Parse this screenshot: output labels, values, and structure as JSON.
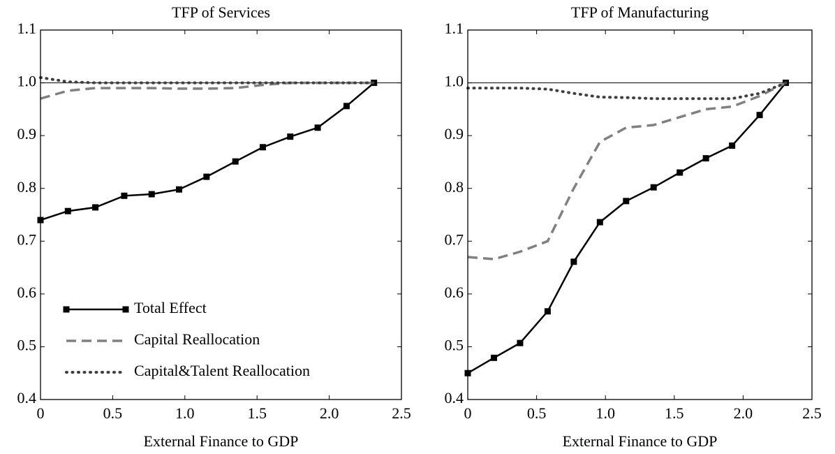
{
  "chart_data": [
    {
      "type": "line",
      "title": "TFP of Services",
      "xlabel": "External Finance to GDP",
      "x": [
        0,
        0.19,
        0.38,
        0.58,
        0.77,
        0.96,
        1.15,
        1.35,
        1.54,
        1.73,
        1.92,
        2.12,
        2.31
      ],
      "series": [
        {
          "name": "Total Effect",
          "color": "#000000",
          "linestyle": "solid",
          "marker": "square",
          "values": [
            0.74,
            0.757,
            0.764,
            0.786,
            0.789,
            0.798,
            0.822,
            0.851,
            0.878,
            0.898,
            0.915,
            0.956,
            1.0
          ]
        },
        {
          "name": "Capital Reallocation",
          "color": "#808080",
          "linestyle": "dashed",
          "values": [
            0.97,
            0.985,
            0.99,
            0.99,
            0.99,
            0.989,
            0.989,
            0.99,
            0.996,
            1.0,
            1.0,
            1.0,
            1.0
          ]
        },
        {
          "name": "Capital&Talent Reallocation",
          "color": "#404040",
          "linestyle": "dotted",
          "values": [
            1.01,
            1.002,
            1.0,
            1.0,
            1.0,
            1.0,
            1.0,
            1.0,
            1.0,
            1.0,
            1.0,
            1.0,
            1.0
          ]
        }
      ],
      "xlim": [
        0,
        2.5
      ],
      "ylim": [
        0.4,
        1.1
      ],
      "xticks": [
        0,
        0.5,
        {
          "value": 1,
          "label": "1.0"
        },
        1.5,
        {
          "value": 2,
          "label": "2.0"
        },
        2.5
      ],
      "yticks": [
        0.4,
        0.5,
        0.6,
        0.7,
        0.8,
        0.9,
        {
          "value": 1,
          "label": "1.0"
        },
        1.1
      ],
      "hline": 1,
      "legend": "lower left"
    },
    {
      "type": "line",
      "title": "TFP of Manufacturing",
      "xlabel": "External Finance to GDP",
      "x": [
        0,
        0.19,
        0.38,
        0.58,
        0.77,
        0.96,
        1.15,
        1.35,
        1.54,
        1.73,
        1.92,
        2.12,
        2.31
      ],
      "series": [
        {
          "color": "#000000",
          "linestyle": "solid",
          "marker": "square",
          "values": [
            0.45,
            0.479,
            0.507,
            0.567,
            0.661,
            0.736,
            0.776,
            0.802,
            0.83,
            0.857,
            0.881,
            0.939,
            1.0
          ]
        },
        {
          "color": "#808080",
          "linestyle": "dashed",
          "values": [
            0.67,
            0.666,
            0.68,
            0.7,
            0.8,
            0.888,
            0.915,
            0.92,
            0.935,
            0.95,
            0.955,
            0.975,
            1.0
          ]
        },
        {
          "color": "#404040",
          "linestyle": "dotted",
          "values": [
            0.99,
            0.99,
            0.99,
            0.988,
            0.98,
            0.973,
            0.972,
            0.97,
            0.97,
            0.97,
            0.97,
            0.98,
            1.0
          ]
        }
      ],
      "xlim": [
        0,
        2.5
      ],
      "ylim": [
        0.4,
        1.1
      ],
      "xticks": [
        0,
        0.5,
        {
          "value": 1,
          "label": "1.0"
        },
        1.5,
        {
          "value": 2,
          "label": "2.0"
        },
        2.5
      ],
      "yticks": [
        0.4,
        0.5,
        0.6,
        0.7,
        0.8,
        0.9,
        {
          "value": 1,
          "label": "1.0"
        },
        1.1
      ],
      "hline": 1
    }
  ]
}
